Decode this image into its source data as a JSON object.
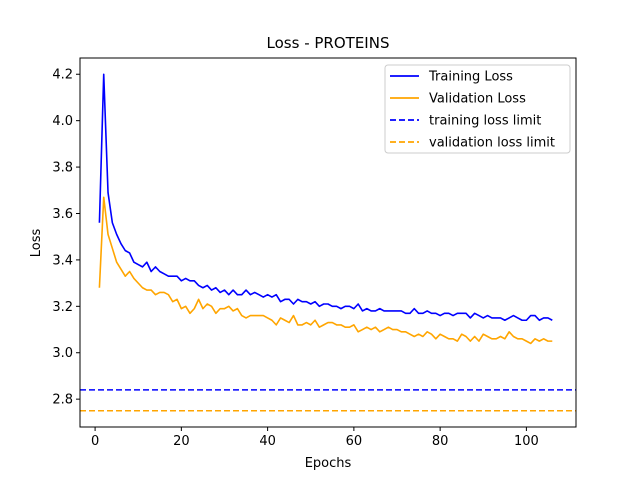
{
  "chart_data": {
    "type": "line",
    "title": "Loss - PROTEINS",
    "xlabel": "Epochs",
    "ylabel": "Loss",
    "xlim": [
      -3.5,
      111.5
    ],
    "ylim": [
      2.68,
      4.27
    ],
    "xticks": [
      0,
      20,
      40,
      60,
      80,
      100
    ],
    "xtick_labels": [
      "0",
      "20",
      "40",
      "60",
      "80",
      "100"
    ],
    "yticks": [
      2.8,
      3.0,
      3.2,
      3.4,
      3.6,
      3.8,
      4.0,
      4.2
    ],
    "ytick_labels": [
      "2.8",
      "3.0",
      "3.2",
      "3.4",
      "3.6",
      "3.8",
      "4.0",
      "4.2"
    ],
    "grid": false,
    "legend_position": "top-right",
    "series": [
      {
        "name": "Training Loss",
        "color": "#0000ff",
        "style": "solid",
        "x": [
          1,
          2,
          3,
          4,
          5,
          6,
          7,
          8,
          9,
          10,
          11,
          12,
          13,
          14,
          15,
          16,
          17,
          18,
          19,
          20,
          21,
          22,
          23,
          24,
          25,
          26,
          27,
          28,
          29,
          30,
          31,
          32,
          33,
          34,
          35,
          36,
          37,
          38,
          39,
          40,
          41,
          42,
          43,
          44,
          45,
          46,
          47,
          48,
          49,
          50,
          51,
          52,
          53,
          54,
          55,
          56,
          57,
          58,
          59,
          60,
          61,
          62,
          63,
          64,
          65,
          66,
          67,
          68,
          69,
          70,
          71,
          72,
          73,
          74,
          75,
          76,
          77,
          78,
          79,
          80,
          81,
          82,
          83,
          84,
          85,
          86,
          87,
          88,
          89,
          90,
          91,
          92,
          93,
          94,
          95,
          96,
          97,
          98,
          99,
          100,
          101,
          102,
          103,
          104,
          105,
          106
        ],
        "values": [
          3.56,
          4.2,
          3.69,
          3.56,
          3.51,
          3.47,
          3.44,
          3.43,
          3.39,
          3.38,
          3.37,
          3.39,
          3.35,
          3.37,
          3.35,
          3.34,
          3.33,
          3.33,
          3.33,
          3.31,
          3.32,
          3.31,
          3.31,
          3.29,
          3.28,
          3.29,
          3.27,
          3.28,
          3.26,
          3.27,
          3.25,
          3.27,
          3.25,
          3.25,
          3.27,
          3.25,
          3.26,
          3.25,
          3.24,
          3.25,
          3.24,
          3.25,
          3.22,
          3.23,
          3.23,
          3.21,
          3.23,
          3.22,
          3.22,
          3.21,
          3.22,
          3.2,
          3.21,
          3.21,
          3.2,
          3.2,
          3.19,
          3.2,
          3.2,
          3.19,
          3.21,
          3.18,
          3.19,
          3.18,
          3.18,
          3.19,
          3.18,
          3.18,
          3.18,
          3.18,
          3.18,
          3.17,
          3.17,
          3.19,
          3.17,
          3.17,
          3.18,
          3.17,
          3.17,
          3.16,
          3.17,
          3.17,
          3.16,
          3.17,
          3.17,
          3.17,
          3.15,
          3.17,
          3.16,
          3.15,
          3.16,
          3.15,
          3.15,
          3.15,
          3.14,
          3.15,
          3.16,
          3.15,
          3.14,
          3.14,
          3.16,
          3.16,
          3.14,
          3.15,
          3.15,
          3.14
        ]
      },
      {
        "name": "Validation Loss",
        "color": "#ffa500",
        "style": "solid",
        "x": [
          1,
          2,
          3,
          4,
          5,
          6,
          7,
          8,
          9,
          10,
          11,
          12,
          13,
          14,
          15,
          16,
          17,
          18,
          19,
          20,
          21,
          22,
          23,
          24,
          25,
          26,
          27,
          28,
          29,
          30,
          31,
          32,
          33,
          34,
          35,
          36,
          37,
          38,
          39,
          40,
          41,
          42,
          43,
          44,
          45,
          46,
          47,
          48,
          49,
          50,
          51,
          52,
          53,
          54,
          55,
          56,
          57,
          58,
          59,
          60,
          61,
          62,
          63,
          64,
          65,
          66,
          67,
          68,
          69,
          70,
          71,
          72,
          73,
          74,
          75,
          76,
          77,
          78,
          79,
          80,
          81,
          82,
          83,
          84,
          85,
          86,
          87,
          88,
          89,
          90,
          91,
          92,
          93,
          94,
          95,
          96,
          97,
          98,
          99,
          100,
          101,
          102,
          103,
          104,
          105,
          106
        ],
        "values": [
          3.28,
          3.67,
          3.51,
          3.45,
          3.39,
          3.36,
          3.33,
          3.35,
          3.32,
          3.3,
          3.28,
          3.27,
          3.27,
          3.25,
          3.26,
          3.26,
          3.25,
          3.22,
          3.23,
          3.19,
          3.2,
          3.17,
          3.19,
          3.23,
          3.19,
          3.21,
          3.2,
          3.17,
          3.19,
          3.19,
          3.2,
          3.18,
          3.19,
          3.16,
          3.15,
          3.16,
          3.16,
          3.16,
          3.16,
          3.15,
          3.14,
          3.12,
          3.15,
          3.14,
          3.13,
          3.16,
          3.12,
          3.12,
          3.13,
          3.12,
          3.14,
          3.11,
          3.12,
          3.13,
          3.13,
          3.12,
          3.12,
          3.11,
          3.11,
          3.12,
          3.09,
          3.1,
          3.11,
          3.1,
          3.11,
          3.09,
          3.1,
          3.11,
          3.1,
          3.1,
          3.09,
          3.09,
          3.08,
          3.07,
          3.08,
          3.07,
          3.09,
          3.08,
          3.06,
          3.08,
          3.07,
          3.06,
          3.06,
          3.05,
          3.08,
          3.07,
          3.05,
          3.07,
          3.05,
          3.08,
          3.07,
          3.06,
          3.06,
          3.07,
          3.06,
          3.09,
          3.07,
          3.06,
          3.06,
          3.05,
          3.04,
          3.06,
          3.05,
          3.06,
          3.05,
          3.05
        ]
      }
    ],
    "hlines": [
      {
        "name": "training loss limit",
        "y": 2.84,
        "color": "#0000ff",
        "style": "dashed"
      },
      {
        "name": "validation loss limit",
        "y": 2.75,
        "color": "#ffa500",
        "style": "dashed"
      }
    ]
  }
}
